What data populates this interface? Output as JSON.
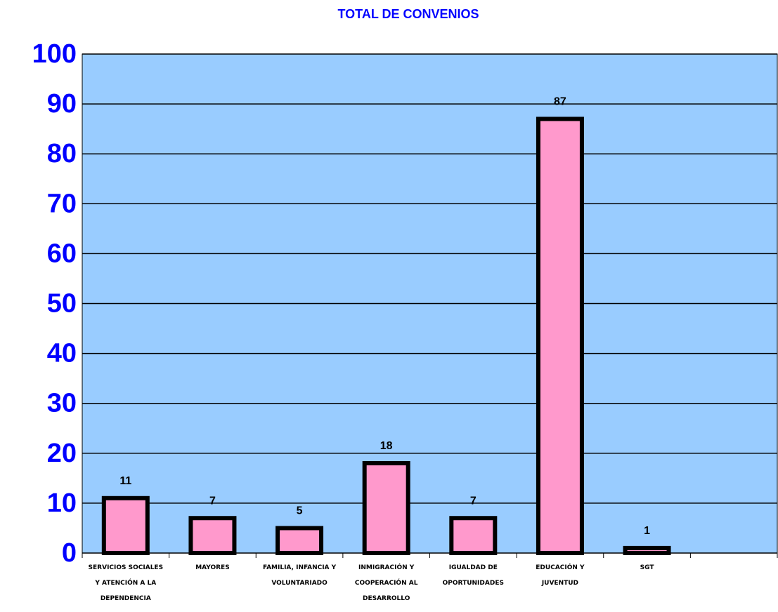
{
  "chart_data": {
    "type": "bar",
    "title": "TOTAL DE CONVENIOS",
    "categories": [
      "SERVICIOS SOCIALES Y ATENCIÓN A LA DEPENDENCIA",
      "MAYORES",
      "FAMILIA, INFANCIA Y VOLUNTARIADO",
      "INMIGRACIÓN Y COOPERACIÓN AL DESARROLLO",
      "IGUALDAD DE OPORTUNIDADES",
      "EDUCACIÓN Y JUVENTUD",
      "SGT",
      null
    ],
    "values": [
      11,
      7,
      5,
      18,
      7,
      87,
      1,
      null
    ],
    "color": "#ff99cc",
    "background": "#99ccff",
    "ylim": [
      0,
      100
    ],
    "yticks": [
      0,
      10,
      20,
      30,
      40,
      50,
      60,
      70,
      80,
      90,
      100
    ],
    "grid": true
  }
}
